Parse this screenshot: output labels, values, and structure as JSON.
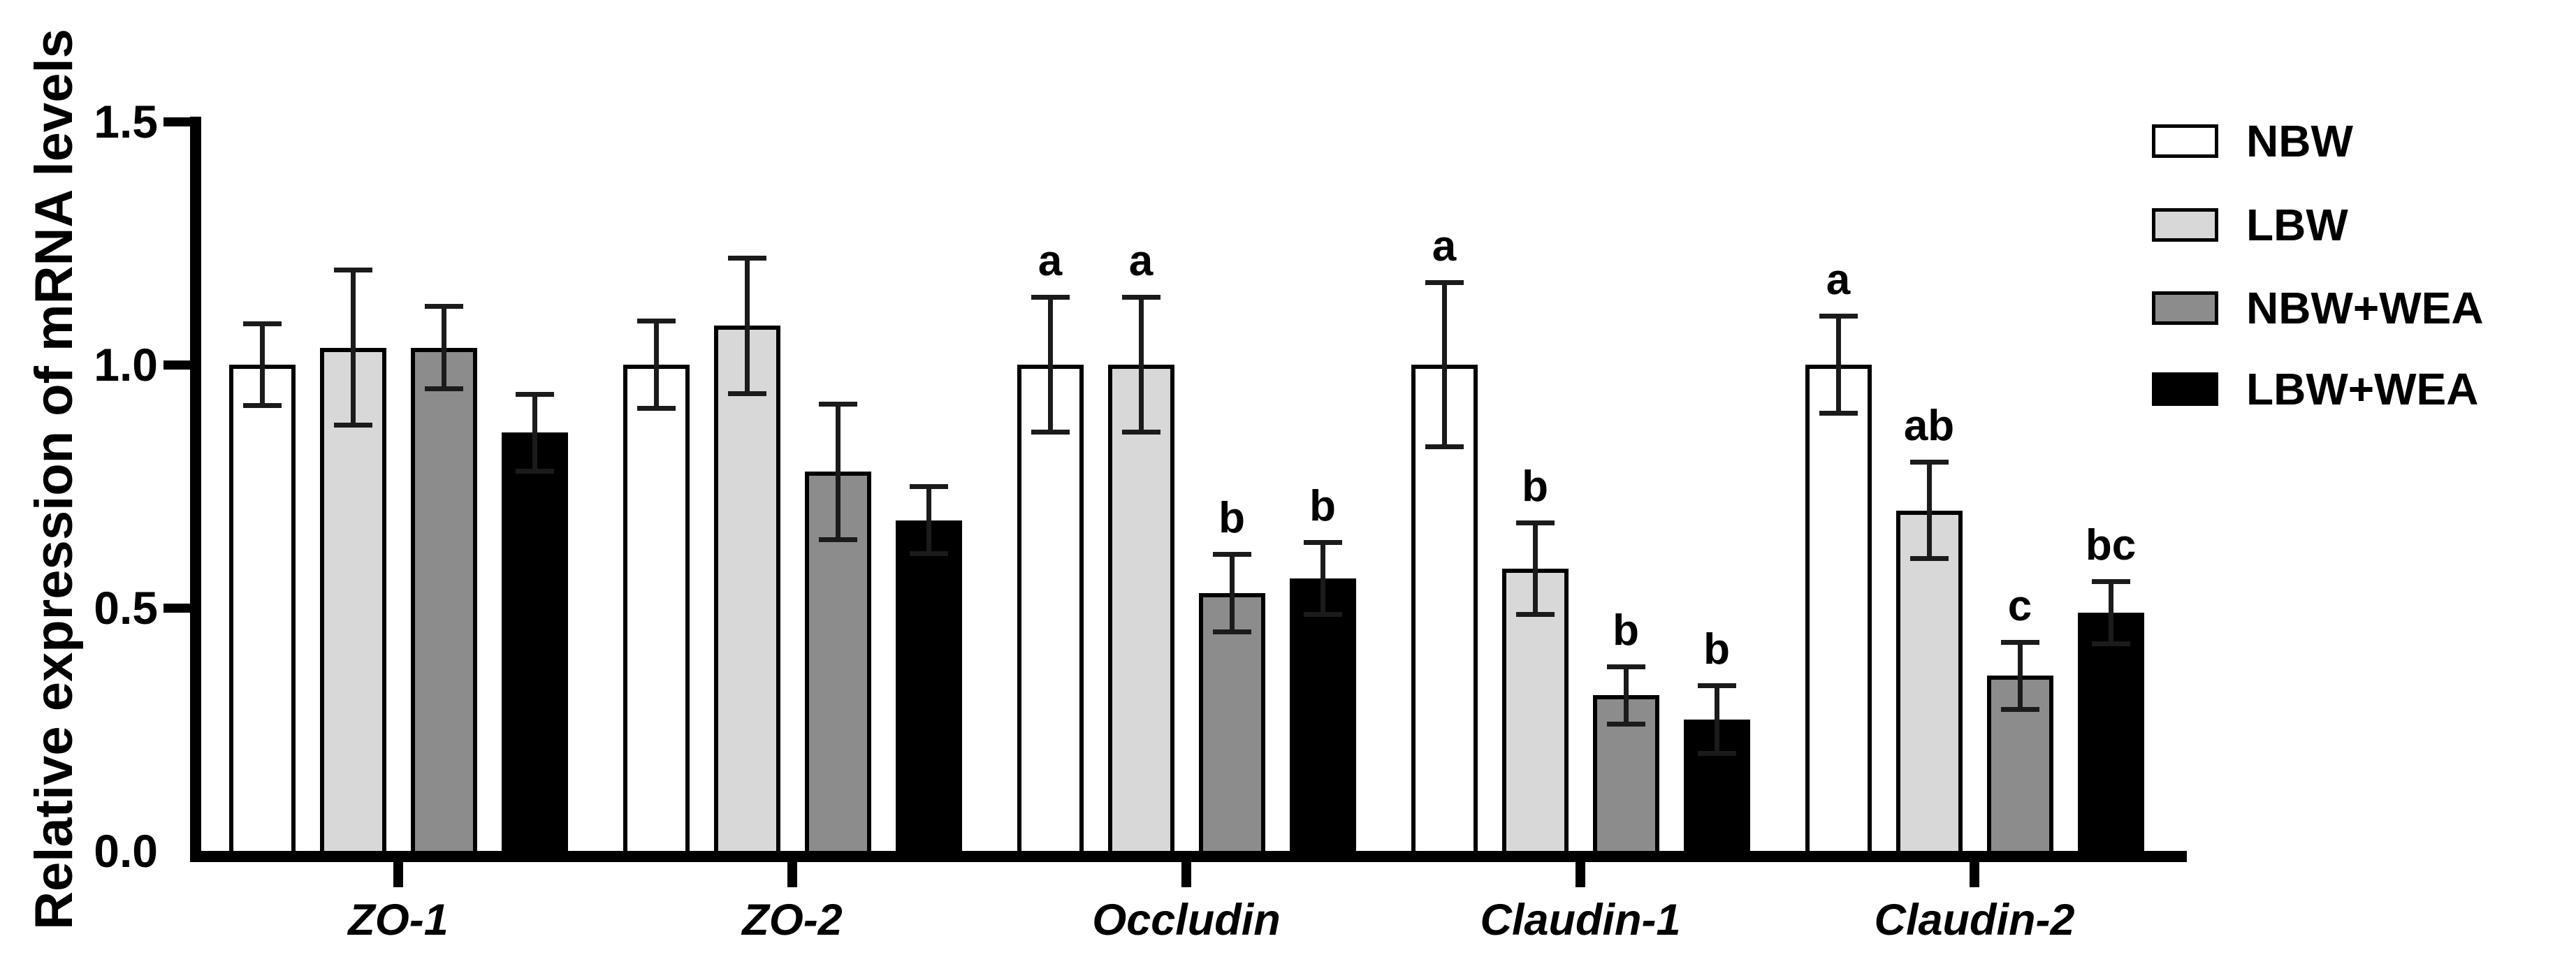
{
  "figure": {
    "background": "#ffffff",
    "text_color": "#000000"
  },
  "chart_data": {
    "type": "bar",
    "title": "",
    "xlabel": "",
    "ylabel": "Relative expression of mRNA levels",
    "ylim": [
      0,
      1.5
    ],
    "ytick_labels": [
      "1.5",
      "1.0",
      "0.5",
      "0.0"
    ],
    "ytick_values": [
      1.5,
      1.0,
      0.5,
      0.0
    ],
    "grid": false,
    "legend_position": "right",
    "error_bars": "both-directions-with-caps",
    "categories": [
      "ZO-1",
      "ZO-2",
      "Occludin",
      "Claudin-1",
      "Claudin-2"
    ],
    "series": [
      {
        "name": "NBW",
        "color": "#ffffff",
        "values": [
          1.0,
          1.0,
          1.0,
          1.0,
          1.0
        ],
        "errors": [
          0.085,
          0.09,
          0.14,
          0.17,
          0.1
        ],
        "letters": [
          "",
          "",
          "a",
          "a",
          "a"
        ]
      },
      {
        "name": "LBW",
        "color": "#d8d8d8",
        "values": [
          1.035,
          1.08,
          1.0,
          0.58,
          0.7
        ],
        "errors": [
          0.16,
          0.14,
          0.14,
          0.095,
          0.1
        ],
        "letters": [
          "",
          "",
          "a",
          "b",
          "ab"
        ]
      },
      {
        "name": "NBW+WEA",
        "color": "#8c8c8c",
        "values": [
          1.035,
          0.78,
          0.53,
          0.32,
          0.36
        ],
        "errors": [
          0.085,
          0.14,
          0.08,
          0.06,
          0.07
        ],
        "letters": [
          "",
          "",
          "b",
          "b",
          "c"
        ]
      },
      {
        "name": "LBW+WEA",
        "color": "#000000",
        "values": [
          0.86,
          0.68,
          0.56,
          0.27,
          0.49
        ],
        "errors": [
          0.08,
          0.07,
          0.075,
          0.07,
          0.065
        ],
        "letters": [
          "",
          "",
          "b",
          "b",
          "bc"
        ]
      }
    ]
  }
}
